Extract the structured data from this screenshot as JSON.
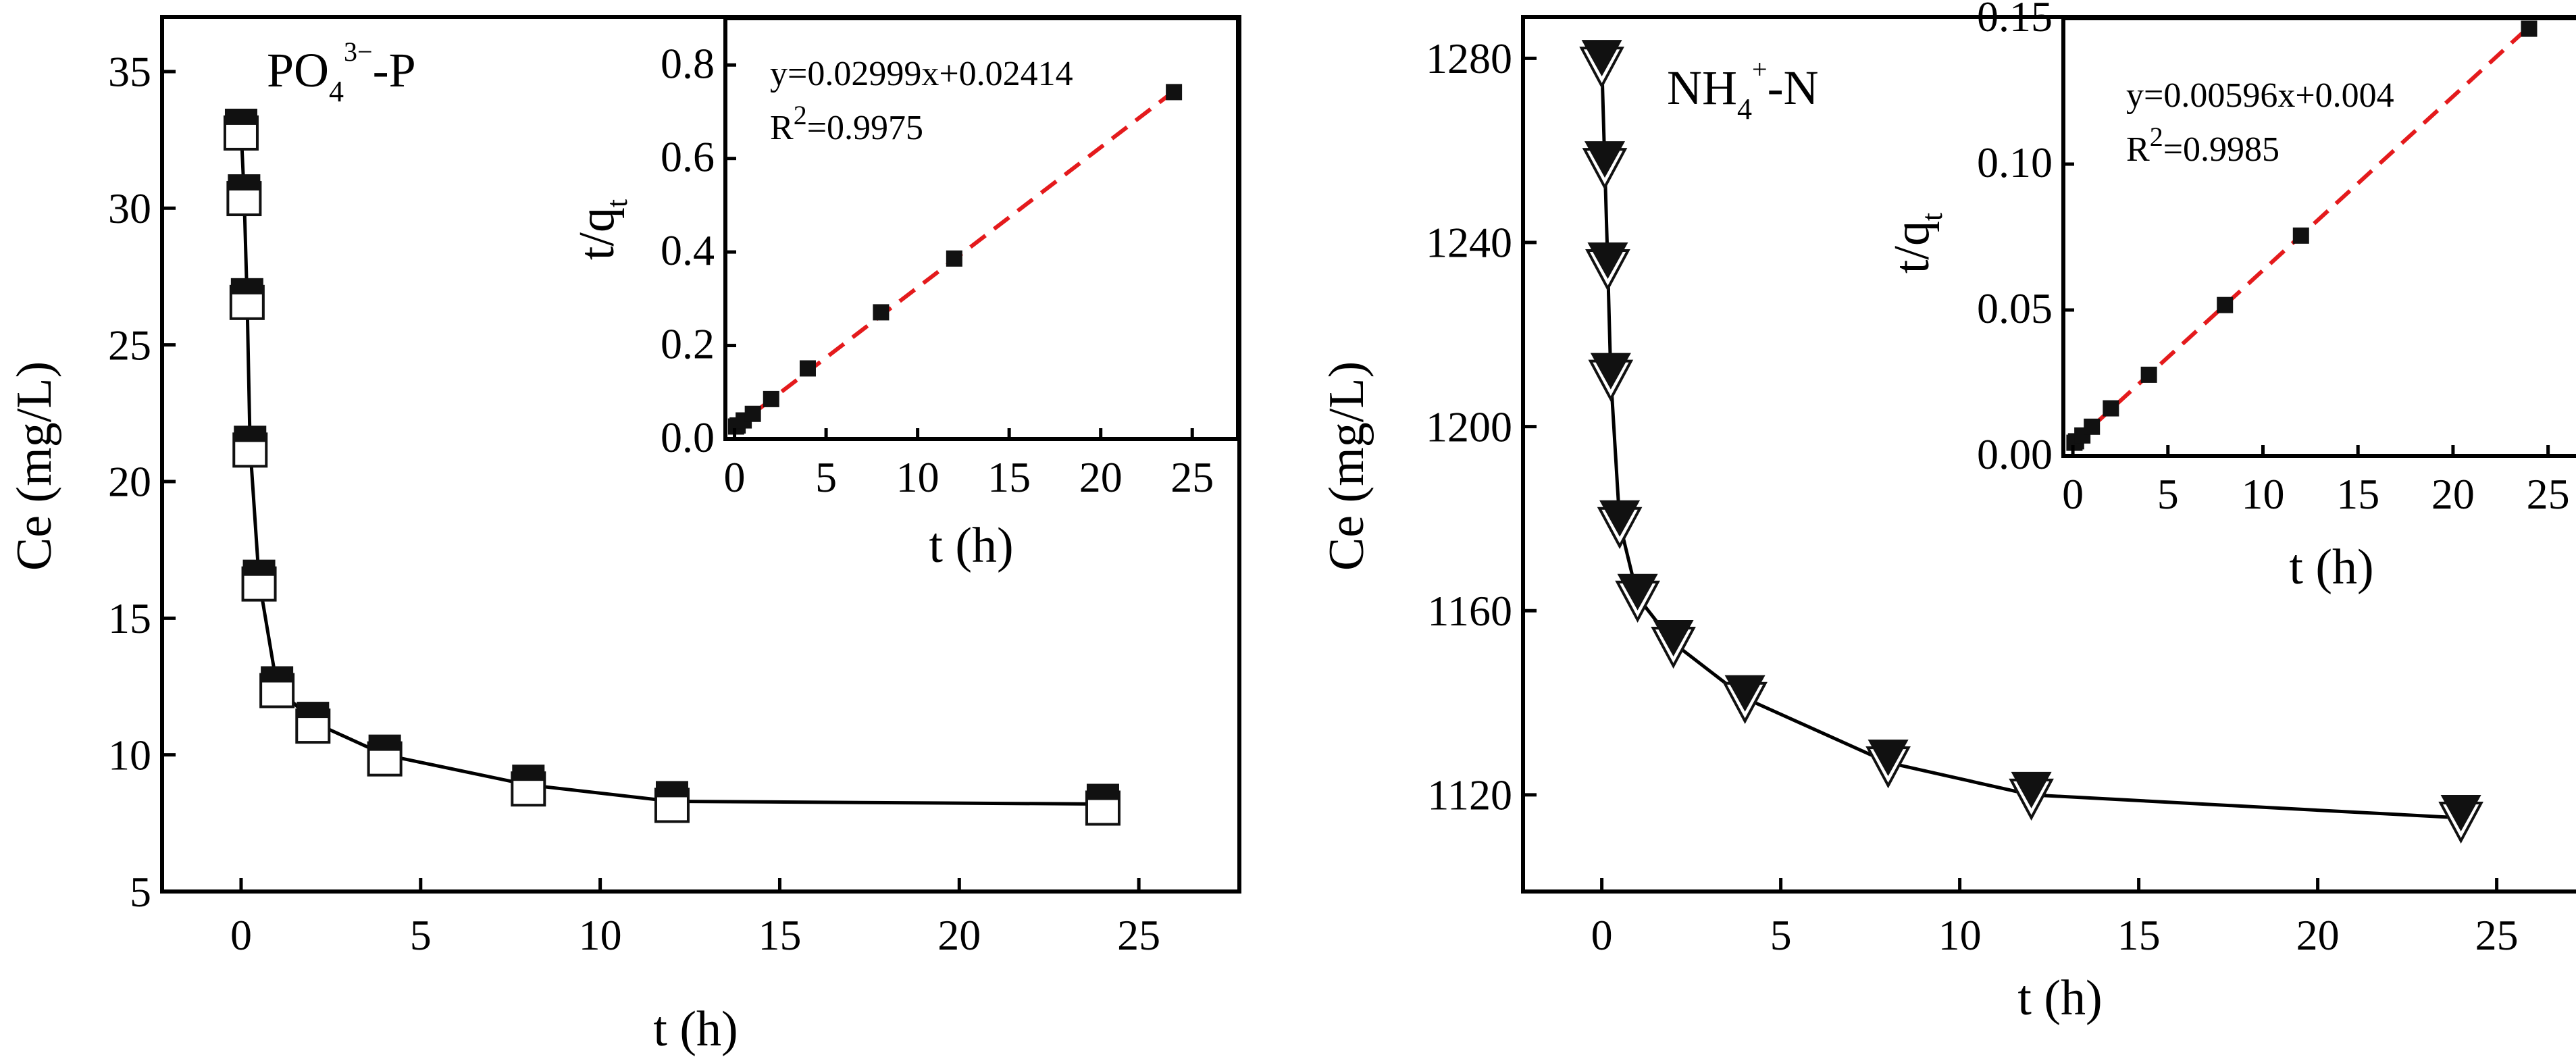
{
  "chart_data": [
    {
      "id": "phosphate-main",
      "type": "line",
      "marker": "square",
      "title": "PO43−-P",
      "title_parts": {
        "base": "PO",
        "sub": "4",
        "sup": "3−",
        "rest": "-P"
      },
      "xlabel": "t (h)",
      "ylabel": "Ce (mg/L)",
      "xlim": [
        -2.2,
        27.8
      ],
      "ylim": [
        5,
        37
      ],
      "xticks": [
        0,
        5,
        10,
        15,
        20,
        25
      ],
      "yticks": [
        5,
        10,
        15,
        20,
        25,
        30,
        35
      ],
      "series": [
        {
          "name": "PO43−-P",
          "x": [
            0,
            0.083,
            0.167,
            0.25,
            0.5,
            1,
            2,
            4,
            8,
            12,
            24
          ],
          "y": [
            32.9,
            30.5,
            26.7,
            21.3,
            16.4,
            12.5,
            11.2,
            10.0,
            8.9,
            8.3,
            8.2
          ]
        }
      ],
      "inset": {
        "type": "scatter",
        "xlabel": "t (h)",
        "ylabel": "t/qt",
        "ylabel_parts": {
          "base": "t/q",
          "sub": "t"
        },
        "xlim": [
          -0.5,
          27.5
        ],
        "ylim": [
          0,
          0.9
        ],
        "xticks": [
          0,
          5,
          10,
          15,
          20,
          25
        ],
        "yticks": [
          0.0,
          0.2,
          0.4,
          0.6,
          0.8
        ],
        "ytick_labels": [
          "0.0",
          "0.2",
          "0.4",
          "0.6",
          "0.8"
        ],
        "x": [
          0.083,
          0.167,
          0.5,
          1,
          2,
          4,
          8,
          12,
          24
        ],
        "y": [
          0.0267,
          0.029,
          0.0397,
          0.0538,
          0.0854,
          0.151,
          0.271,
          0.386,
          0.742
        ],
        "fit": {
          "slope": 0.02999,
          "intercept": 0.02414,
          "x_range": [
            0,
            24
          ]
        },
        "equation": "y=0.02999x+0.02414",
        "r2_label": "R",
        "r2_sup": "2",
        "r2_value": "=0.9975"
      }
    },
    {
      "id": "ammonium-main",
      "type": "line",
      "marker": "triangle-down",
      "title": "NH4+-N",
      "title_parts": {
        "base": "NH",
        "sub": "4",
        "sup": "+",
        "rest": "-N"
      },
      "xlabel": "t (h)",
      "ylabel": "Ce (mg/L)",
      "xlim": [
        -2.2,
        27.8
      ],
      "ylim": [
        1099,
        1289
      ],
      "xticks": [
        0,
        5,
        10,
        15,
        20,
        25
      ],
      "yticks": [
        1120,
        1160,
        1200,
        1240,
        1280
      ],
      "series": [
        {
          "name": "NH4+-N",
          "x": [
            0,
            0.083,
            0.167,
            0.25,
            0.5,
            1,
            2,
            4,
            8,
            12,
            24
          ],
          "y": [
            1279,
            1257,
            1235,
            1211,
            1179,
            1163,
            1153,
            1141,
            1127,
            1120,
            1115
          ]
        }
      ],
      "inset": {
        "type": "scatter",
        "xlabel": "t (h)",
        "ylabel": "t/qt",
        "ylabel_parts": {
          "base": "t/q",
          "sub": "t"
        },
        "xlim": [
          -0.5,
          27.5
        ],
        "ylim": [
          0,
          0.15
        ],
        "xticks": [
          0,
          5,
          10,
          15,
          20,
          25
        ],
        "yticks": [
          0.0,
          0.05,
          0.1,
          0.15
        ],
        "ytick_labels": [
          "0.00",
          "0.05",
          "0.10",
          "0.15"
        ],
        "x": [
          0.083,
          0.167,
          0.5,
          1,
          2,
          4,
          8,
          12,
          24
        ],
        "y": [
          0.0045,
          0.005,
          0.007,
          0.01,
          0.0163,
          0.0278,
          0.0517,
          0.0755,
          0.1464
        ],
        "fit": {
          "slope": 0.00596,
          "intercept": 0.004,
          "x_range": [
            0,
            24
          ]
        },
        "equation": "y=0.00596x+0.004",
        "r2_label": "R",
        "r2_sup": "2",
        "r2_value": "=0.9985"
      }
    }
  ],
  "colors": {
    "axis": "#000000",
    "fit_line": "#e41a1c",
    "marker": "#111111"
  }
}
